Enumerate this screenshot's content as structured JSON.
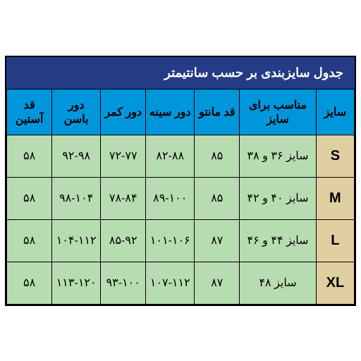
{
  "title": "جدول سایزبندی بر حسب  سانتیمتر",
  "columns": [
    "سایز",
    "مناسب برای سایز",
    "قد مانتو",
    "دور سینه",
    "دور کمر",
    "دور باسن",
    "قد آستین"
  ],
  "rows": [
    {
      "size": "S",
      "fit": "سایز ۳۶ و ۳۸",
      "length": "۸۵",
      "bust": "۸۲-۸۸",
      "waist": "۷۲-۷۷",
      "hip": "۹۲-۹۸",
      "sleeve": "۵۸"
    },
    {
      "size": "M",
      "fit": "سایز ۴۰ و ۴۲",
      "length": "۸۵",
      "bust": "۸۹-۱۰۰",
      "waist": "۷۸-۸۴",
      "hip": "۹۸-۱۰۴",
      "sleeve": "۵۸"
    },
    {
      "size": "L",
      "fit": "سایز ۴۴ و ۴۶",
      "length": "۸۷",
      "bust": "۱۰۱-۱۰۶",
      "waist": "۸۵-۹۲",
      "hip": "۱۰۴-۱۱۲",
      "sleeve": "۵۸"
    },
    {
      "size": "XL",
      "fit": "سایز ۴۸",
      "length": "۸۷",
      "bust": "۱۰۷-۱۱۲",
      "waist": "۹۳-۱۰۰",
      "hip": "۱۱۳-۱۲۰",
      "sleeve": "۵۸"
    }
  ],
  "colors": {
    "title_bg": "#263b85",
    "header_bg": "#0096db",
    "size_bg": "#e0cfa0",
    "data_bg": "#b7dcb1",
    "border": "#000000",
    "title_text": "#ffffff"
  }
}
